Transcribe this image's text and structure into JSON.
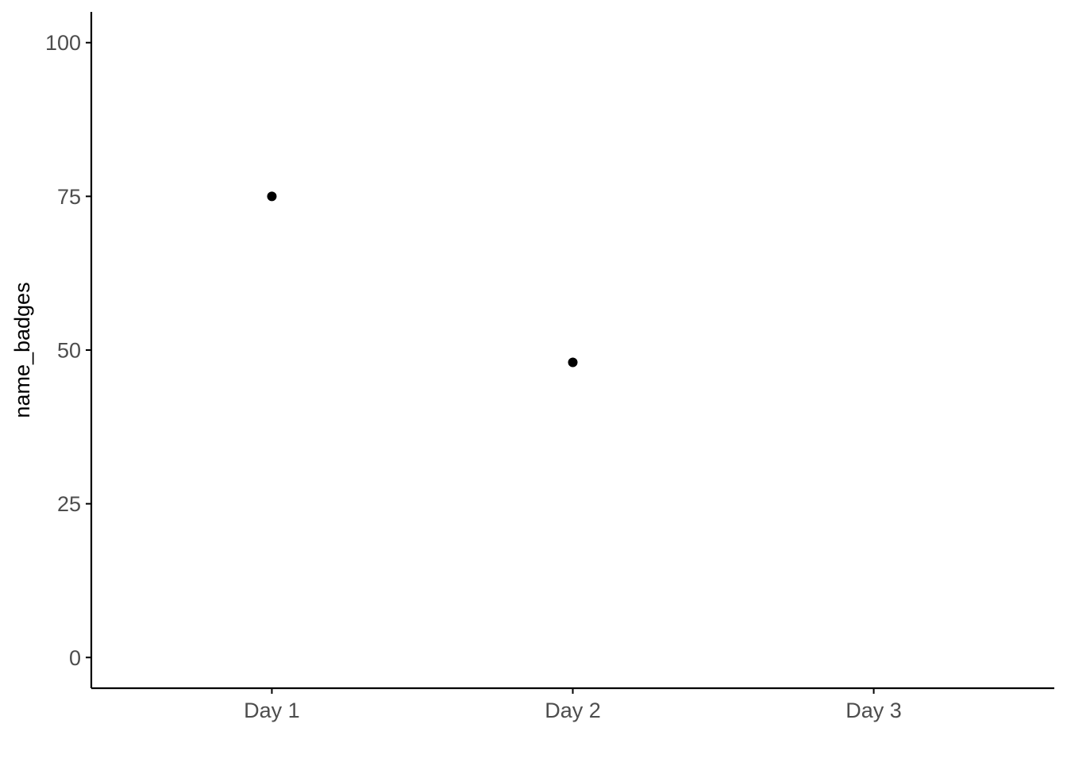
{
  "chart_data": {
    "type": "scatter",
    "title": "",
    "xlabel": "",
    "ylabel": "name_badges",
    "categories": [
      "Day 1",
      "Day 2",
      "Day 3"
    ],
    "series": [
      {
        "values": [
          75,
          48,
          null
        ]
      }
    ],
    "ylim": [
      -5,
      105
    ],
    "yticks": [
      0,
      25,
      50,
      75,
      100
    ],
    "grid": false,
    "legend": "none",
    "colors": {
      "point": "#000000",
      "axis": "#000000",
      "tick_text": "#4d4d4d",
      "background": "#ffffff"
    }
  }
}
